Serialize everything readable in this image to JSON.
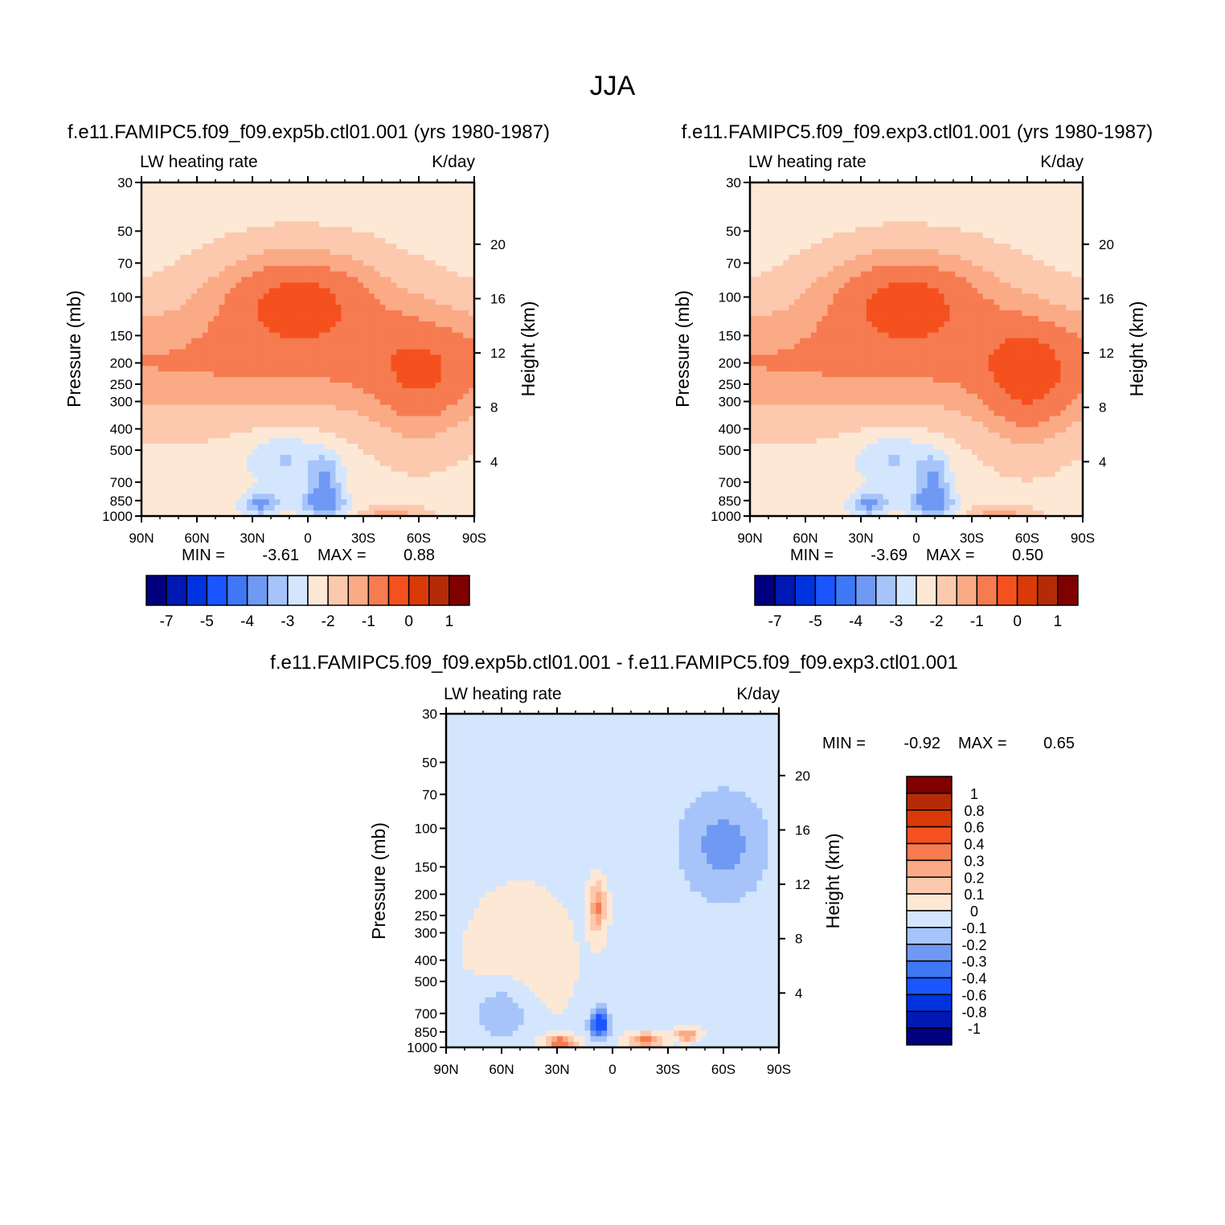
{
  "page": {
    "title": "JJA"
  },
  "palette": {
    "absolute": [
      "#000080",
      "#0018b4",
      "#0033e0",
      "#1a55ff",
      "#3f78f5",
      "#7099f4",
      "#a6c4fa",
      "#d4e6fd",
      "#fde8d6",
      "#fcc9ae",
      "#fbaa86",
      "#f67b50",
      "#f4511e",
      "#d93a08",
      "#b52b08",
      "#800000"
    ],
    "difference": [
      "#000080",
      "#0018b4",
      "#0033e0",
      "#1a55ff",
      "#3f78f5",
      "#7099f4",
      "#a6c4fa",
      "#d4e6fd",
      "#fde8d6",
      "#fcc9ae",
      "#fbaa86",
      "#f67b50",
      "#f4511e",
      "#d93a08",
      "#b52b08",
      "#800000"
    ]
  },
  "chart_data": [
    {
      "type": "heatmap",
      "title": "f.e11.FAMIPC5.f09_f09.exp5b.ctl01.001 (yrs 1980-1987)",
      "left_label": "LW heating rate",
      "right_label": "K/day",
      "ylabel": "Pressure (mb)",
      "ylabel_right": "Height (km)",
      "x_ticks": [
        "90N",
        "60N",
        "30N",
        "0",
        "30S",
        "60S",
        "90S"
      ],
      "y_ticks": [
        "30",
        "50",
        "70",
        "100",
        "150",
        "200",
        "250",
        "300",
        "400",
        "500",
        "700",
        "850",
        "1000"
      ],
      "y_ticks_right": [
        "20",
        "16",
        "12",
        "8",
        "4"
      ],
      "min_label": "MIN =",
      "min_value": "-3.61",
      "max_label": "MAX =",
      "max_value": "0.88",
      "colorbar_labels": [
        "-7",
        "-5",
        "-4",
        "-3",
        "-2",
        "-1",
        "0",
        "1"
      ],
      "ylim": [
        1000,
        30
      ],
      "xlim": [
        90,
        -90
      ]
    },
    {
      "type": "heatmap",
      "title": "f.e11.FAMIPC5.f09_f09.exp3.ctl01.001 (yrs 1980-1987)",
      "left_label": "LW heating rate",
      "right_label": "K/day",
      "ylabel": "Pressure (mb)",
      "ylabel_right": "Height (km)",
      "x_ticks": [
        "90N",
        "60N",
        "30N",
        "0",
        "30S",
        "60S",
        "90S"
      ],
      "y_ticks": [
        "30",
        "50",
        "70",
        "100",
        "150",
        "200",
        "250",
        "300",
        "400",
        "500",
        "700",
        "850",
        "1000"
      ],
      "y_ticks_right": [
        "20",
        "16",
        "12",
        "8",
        "4"
      ],
      "min_label": "MIN =",
      "min_value": "-3.69",
      "max_label": "MAX =",
      "max_value": "0.50",
      "colorbar_labels": [
        "-7",
        "-5",
        "-4",
        "-3",
        "-2",
        "-1",
        "0",
        "1"
      ],
      "ylim": [
        1000,
        30
      ],
      "xlim": [
        90,
        -90
      ]
    },
    {
      "type": "heatmap",
      "title": "f.e11.FAMIPC5.f09_f09.exp5b.ctl01.001 - f.e11.FAMIPC5.f09_f09.exp3.ctl01.001",
      "left_label": "LW heating rate",
      "right_label": "K/day",
      "ylabel": "Pressure (mb)",
      "ylabel_right": "Height (km)",
      "x_ticks": [
        "90N",
        "60N",
        "30N",
        "0",
        "30S",
        "60S",
        "90S"
      ],
      "y_ticks": [
        "30",
        "50",
        "70",
        "100",
        "150",
        "200",
        "250",
        "300",
        "400",
        "500",
        "700",
        "850",
        "1000"
      ],
      "y_ticks_right": [
        "20",
        "16",
        "12",
        "8",
        "4"
      ],
      "min_label": "MIN =",
      "min_value": "-0.92",
      "max_label": "MAX =",
      "max_value": "0.65",
      "colorbar_labels": [
        "1",
        "0.8",
        "0.6",
        "0.4",
        "0.3",
        "0.2",
        "0.1",
        "0",
        "-0.1",
        "-0.2",
        "-0.3",
        "-0.4",
        "-0.6",
        "-0.8",
        "-1"
      ],
      "ylim": [
        1000,
        30
      ],
      "xlim": [
        90,
        -90
      ]
    }
  ]
}
